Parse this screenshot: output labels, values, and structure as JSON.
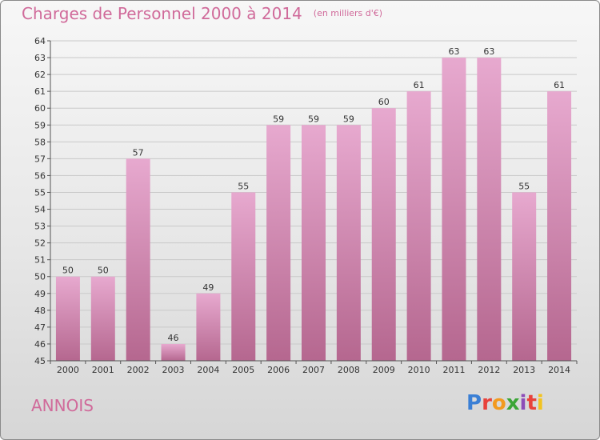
{
  "header": {
    "title": "Charges de Personnel 2000 à 2014",
    "subtitle": "(en milliers d'€)"
  },
  "footer": {
    "commune": "ANNOIS",
    "logo_letters": [
      "P",
      "r",
      "o",
      "x",
      "i",
      "t",
      "i"
    ],
    "logo_colors": [
      "#3a7fd5",
      "#e8423b",
      "#f29a1f",
      "#3aa535",
      "#8d4cb8",
      "#e8423b",
      "#f2c31f"
    ]
  },
  "colors": {
    "bar_top": "#e7a9cf",
    "bar_bottom": "#b5678f",
    "title": "#d06a9a"
  },
  "chart_data": {
    "type": "bar",
    "categories": [
      "2000",
      "2001",
      "2002",
      "2003",
      "2004",
      "2005",
      "2006",
      "2007",
      "2008",
      "2009",
      "2010",
      "2011",
      "2012",
      "2013",
      "2014"
    ],
    "values": [
      50,
      50,
      57,
      46,
      49,
      55,
      59,
      59,
      59,
      60,
      61,
      63,
      63,
      55,
      61
    ],
    "ylim": [
      45,
      64
    ],
    "yticks": [
      45,
      46,
      47,
      48,
      49,
      50,
      51,
      52,
      53,
      54,
      55,
      56,
      57,
      58,
      59,
      60,
      61,
      62,
      63,
      64
    ],
    "grid": true
  }
}
